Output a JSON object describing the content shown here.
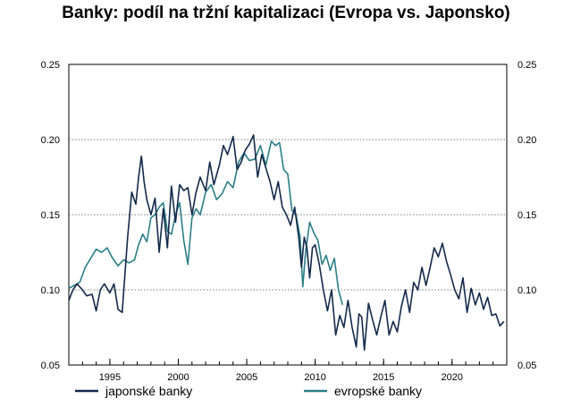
{
  "chart_data": {
    "type": "line",
    "title": "Banky: podíl na tržní kapitalizaci (Evropa vs. Japonsko)",
    "xlabel": "",
    "ylabel": "",
    "xlim": [
      1992,
      2024
    ],
    "ylim": [
      0.05,
      0.25
    ],
    "x_ticks": [
      1995,
      2000,
      2005,
      2010,
      2015,
      2020
    ],
    "y_ticks_left": [
      "0.05",
      "0.10",
      "0.15",
      "0.20",
      "0.25"
    ],
    "y_ticks_right": [
      "0.05",
      "0.10",
      "0.15",
      "0.20",
      "0.25"
    ],
    "y_tick_values": [
      0.05,
      0.1,
      0.15,
      0.2,
      0.25
    ],
    "grid": "horizontal-dotted",
    "legend_position": "bottom",
    "series": [
      {
        "name": "japonské banky",
        "color": "#13294b",
        "x": [
          1992.0,
          1992.3,
          1992.6,
          1993.0,
          1993.3,
          1993.7,
          1994.0,
          1994.3,
          1994.6,
          1995.0,
          1995.3,
          1995.6,
          1995.9,
          1996.3,
          1996.6,
          1996.9,
          1997.1,
          1997.3,
          1997.5,
          1997.7,
          1998.0,
          1998.3,
          1998.6,
          1998.9,
          1999.2,
          1999.5,
          1999.8,
          2000.1,
          2000.4,
          2000.7,
          2001.0,
          2001.3,
          2001.6,
          2002.0,
          2002.3,
          2002.6,
          2003.0,
          2003.3,
          2003.6,
          2004.0,
          2004.3,
          2004.6,
          2004.9,
          2005.2,
          2005.5,
          2005.8,
          2006.1,
          2006.4,
          2006.7,
          2007.0,
          2007.3,
          2007.6,
          2007.9,
          2008.2,
          2008.5,
          2008.8,
          2009.0,
          2009.2,
          2009.4,
          2009.6,
          2009.8,
          2010.0,
          2010.3,
          2010.6,
          2010.9,
          2011.2,
          2011.5,
          2011.8,
          2012.1,
          2012.4,
          2012.7,
          2013.0,
          2013.2,
          2013.4,
          2013.6,
          2013.9,
          2014.2,
          2014.5,
          2014.8,
          2015.1,
          2015.4,
          2015.7,
          2016.0,
          2016.3,
          2016.6,
          2016.9,
          2017.2,
          2017.5,
          2017.8,
          2018.1,
          2018.4,
          2018.7,
          2019.0,
          2019.3,
          2019.6,
          2019.9,
          2020.2,
          2020.5,
          2020.8,
          2021.1,
          2021.4,
          2021.7,
          2022.0,
          2022.3,
          2022.6,
          2022.9,
          2023.2,
          2023.5,
          2023.8
        ],
        "values": [
          0.093,
          0.1,
          0.104,
          0.1,
          0.096,
          0.097,
          0.086,
          0.1,
          0.104,
          0.098,
          0.104,
          0.087,
          0.085,
          0.135,
          0.165,
          0.157,
          0.175,
          0.189,
          0.172,
          0.16,
          0.15,
          0.161,
          0.125,
          0.154,
          0.128,
          0.169,
          0.145,
          0.17,
          0.166,
          0.168,
          0.15,
          0.165,
          0.175,
          0.166,
          0.185,
          0.17,
          0.183,
          0.196,
          0.19,
          0.202,
          0.18,
          0.185,
          0.193,
          0.197,
          0.203,
          0.175,
          0.19,
          0.181,
          0.172,
          0.16,
          0.172,
          0.155,
          0.15,
          0.143,
          0.155,
          0.135,
          0.115,
          0.135,
          0.128,
          0.108,
          0.128,
          0.13,
          0.117,
          0.1,
          0.086,
          0.1,
          0.07,
          0.083,
          0.075,
          0.093,
          0.075,
          0.062,
          0.084,
          0.082,
          0.06,
          0.091,
          0.08,
          0.07,
          0.082,
          0.093,
          0.07,
          0.079,
          0.072,
          0.089,
          0.1,
          0.085,
          0.105,
          0.1,
          0.115,
          0.103,
          0.115,
          0.128,
          0.122,
          0.131,
          0.119,
          0.11,
          0.1,
          0.094,
          0.108,
          0.085,
          0.101,
          0.09,
          0.098,
          0.087,
          0.095,
          0.083,
          0.084,
          0.076,
          0.079
        ]
      },
      {
        "name": "evropské banky",
        "color": "#2a7f86",
        "x": [
          1992.0,
          1992.4,
          1992.8,
          1993.2,
          1993.6,
          1994.0,
          1994.4,
          1994.8,
          1995.2,
          1995.6,
          1996.0,
          1996.4,
          1996.8,
          1997.1,
          1997.4,
          1997.7,
          1998.0,
          1998.3,
          1998.6,
          1998.9,
          1999.2,
          1999.5,
          1999.8,
          2000.1,
          2000.4,
          2000.7,
          2001.0,
          2001.3,
          2001.6,
          2002.0,
          2002.4,
          2002.8,
          2003.2,
          2003.6,
          2004.0,
          2004.4,
          2004.8,
          2005.2,
          2005.6,
          2006.0,
          2006.4,
          2006.8,
          2007.1,
          2007.4,
          2007.7,
          2008.0,
          2008.3,
          2008.6,
          2008.9,
          2009.1,
          2009.3,
          2009.6,
          2009.9,
          2010.2,
          2010.5,
          2010.8,
          2011.1,
          2011.4,
          2011.7,
          2012.0
        ],
        "values": [
          0.101,
          0.103,
          0.105,
          0.115,
          0.121,
          0.127,
          0.125,
          0.128,
          0.121,
          0.116,
          0.12,
          0.118,
          0.12,
          0.13,
          0.137,
          0.132,
          0.148,
          0.15,
          0.155,
          0.158,
          0.139,
          0.137,
          0.15,
          0.158,
          0.133,
          0.117,
          0.148,
          0.154,
          0.15,
          0.165,
          0.17,
          0.16,
          0.164,
          0.172,
          0.168,
          0.185,
          0.191,
          0.186,
          0.187,
          0.196,
          0.183,
          0.199,
          0.196,
          0.198,
          0.18,
          0.177,
          0.153,
          0.15,
          0.135,
          0.102,
          0.125,
          0.145,
          0.138,
          0.133,
          0.117,
          0.123,
          0.113,
          0.121,
          0.1,
          0.09
        ]
      }
    ]
  }
}
